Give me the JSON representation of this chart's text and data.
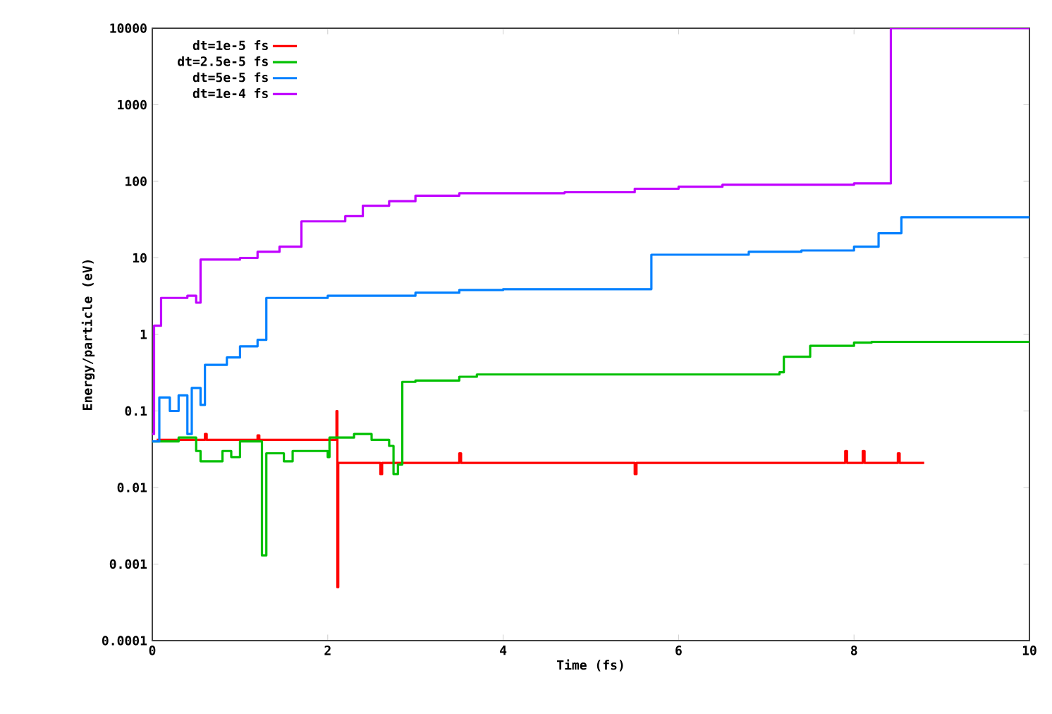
{
  "chart_data": {
    "type": "step",
    "xlabel": "Time (fs)",
    "ylabel": "Energy/particle (eV)",
    "log": "y",
    "grid": false,
    "legend": "top left",
    "marker": "none",
    "line_style": "solid",
    "xlim": [
      0,
      10
    ],
    "ylim": [
      0.0001,
      10000
    ],
    "xticks": [
      0,
      2,
      4,
      6,
      8,
      10
    ],
    "yticks": [
      {
        "value": 0.0001,
        "label": "0.0001"
      },
      {
        "value": 0.001,
        "label": "0.001"
      },
      {
        "value": 0.01,
        "label": "0.01"
      },
      {
        "value": 0.1,
        "label": "0.1"
      },
      1,
      10,
      100,
      1000,
      10000
    ],
    "series": [
      {
        "name": "dt=1e-5 fs",
        "color": "#ff0000",
        "x": [
          0.05,
          0.5,
          0.6,
          0.62,
          1.2,
          1.22,
          2.1,
          2.11,
          2.12,
          2.13,
          2.6,
          2.62,
          3.5,
          3.52,
          5.5,
          5.52,
          7.9,
          7.92,
          8.1,
          8.12,
          8.5,
          8.52,
          8.8
        ],
        "values": [
          0.042,
          0.042,
          0.05,
          0.042,
          0.048,
          0.042,
          0.1,
          0.0005,
          0.021,
          0.021,
          0.015,
          0.021,
          0.028,
          0.021,
          0.015,
          0.021,
          0.03,
          0.021,
          0.03,
          0.021,
          0.028,
          0.021,
          0.021
        ]
      },
      {
        "name": "dt=2.5e-5 fs",
        "color": "#00c000",
        "x": [
          0,
          0.3,
          0.5,
          0.55,
          0.8,
          0.9,
          1.0,
          1.2,
          1.25,
          1.3,
          1.5,
          1.6,
          2.0,
          2.02,
          2.3,
          2.5,
          2.7,
          2.75,
          2.8,
          2.85,
          3.0,
          3.5,
          3.7,
          5.0,
          5.7,
          5.72,
          6.5,
          7.15,
          7.2,
          7.5,
          8.0,
          8.2,
          10
        ],
        "values": [
          0.04,
          0.045,
          0.03,
          0.022,
          0.03,
          0.025,
          0.04,
          0.04,
          0.0013,
          0.028,
          0.022,
          0.03,
          0.025,
          0.045,
          0.05,
          0.042,
          0.035,
          0.015,
          0.02,
          0.24,
          0.25,
          0.28,
          0.3,
          0.3,
          0.3,
          0.3,
          0.3,
          0.32,
          0.51,
          0.71,
          0.78,
          0.8,
          0.82
        ]
      },
      {
        "name": "dt=5e-5 fs",
        "color": "#0080ff",
        "x": [
          0,
          0.08,
          0.2,
          0.3,
          0.4,
          0.45,
          0.55,
          0.6,
          0.85,
          1.0,
          1.2,
          1.3,
          2.0,
          3.0,
          3.5,
          4.0,
          5.69,
          6.8,
          7.4,
          8.0,
          8.28,
          8.54,
          10
        ],
        "values": [
          0.04,
          0.15,
          0.1,
          0.16,
          0.05,
          0.2,
          0.12,
          0.4,
          0.5,
          0.7,
          0.85,
          3.0,
          3.2,
          3.5,
          3.8,
          3.9,
          11,
          12,
          12.5,
          14,
          21,
          34,
          34
        ]
      },
      {
        "name": "dt=1e-4 fs",
        "color": "#c000ff",
        "x": [
          0,
          0.02,
          0.1,
          0.4,
          0.5,
          0.55,
          1.0,
          1.2,
          1.45,
          1.7,
          2.2,
          2.4,
          2.7,
          3.0,
          3.5,
          4.7,
          5.5,
          6.0,
          6.5,
          7.2,
          8.0,
          8.42,
          10
        ],
        "values": [
          0.05,
          1.3,
          3.0,
          3.2,
          2.6,
          9.5,
          10,
          12,
          14,
          30,
          35,
          48,
          55,
          65,
          70,
          72,
          80,
          85,
          90,
          90,
          94,
          10000,
          10000
        ]
      }
    ]
  }
}
